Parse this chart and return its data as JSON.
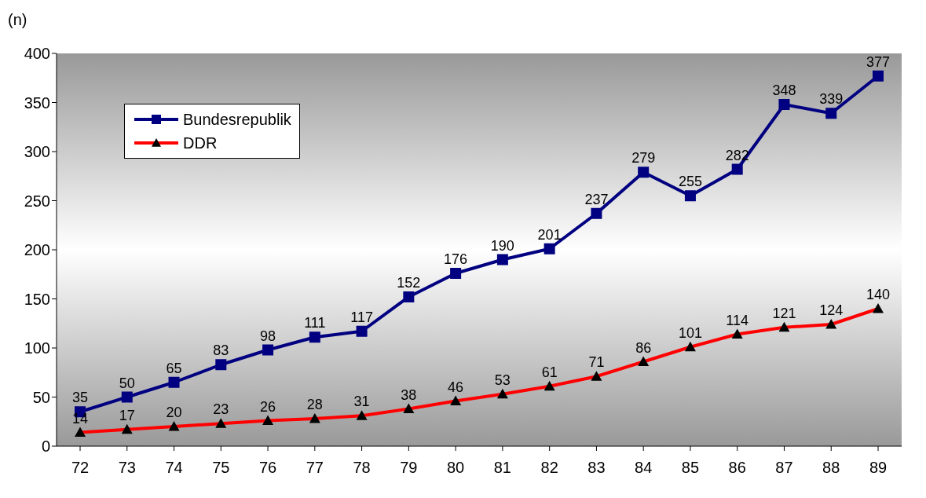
{
  "chart_data": {
    "type": "line",
    "ylabel": "(n)",
    "categories": [
      "72",
      "73",
      "74",
      "75",
      "76",
      "77",
      "78",
      "79",
      "80",
      "81",
      "82",
      "83",
      "84",
      "85",
      "86",
      "87",
      "88",
      "89"
    ],
    "series": [
      {
        "name": "Bundesrepublik",
        "color": "#000080",
        "marker": "square",
        "values": [
          35,
          50,
          65,
          83,
          98,
          111,
          117,
          152,
          176,
          190,
          201,
          237,
          279,
          255,
          282,
          348,
          339,
          377
        ]
      },
      {
        "name": "DDR",
        "color": "#ff0000",
        "marker": "triangle",
        "values": [
          14,
          17,
          20,
          23,
          26,
          28,
          31,
          38,
          46,
          53,
          61,
          71,
          86,
          101,
          114,
          121,
          124,
          140
        ]
      }
    ],
    "ylim": [
      0,
      400
    ],
    "yticks": [
      0,
      50,
      100,
      150,
      200,
      250,
      300,
      350,
      400
    ],
    "grid": false,
    "legend": "top left",
    "data_labels": true
  }
}
